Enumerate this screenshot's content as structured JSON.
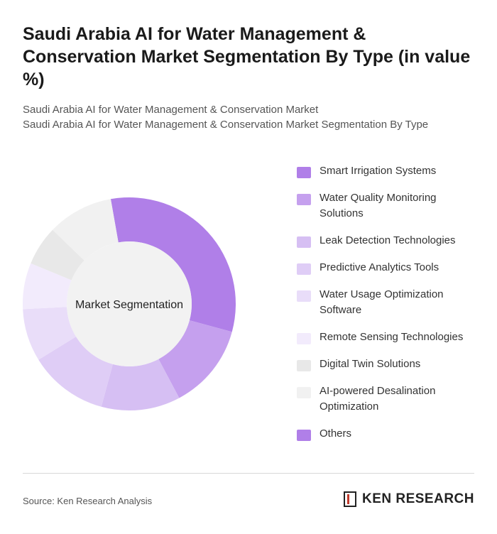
{
  "chart_data": {
    "type": "donut",
    "title": "Saudi Arabia AI for Water Management & Conservation Market Segmentation By Type (in value %)",
    "subtitle": [
      "Saudi Arabia AI for Water Management & Conservation Market",
      "Saudi Arabia AI for Water Management & Conservation Market Segmentation By Type"
    ],
    "center_label": "Market Segmentation",
    "categories": [
      "Smart Irrigation Systems",
      "Water Quality Monitoring Solutions",
      "Leak Detection Technologies",
      "Predictive Analytics Tools",
      "Water Usage Optimization Software",
      "Remote Sensing Technologies",
      "Digital Twin Solutions",
      "AI-powered Desalination Optimization",
      "Others"
    ],
    "values": [
      32,
      13,
      12,
      12,
      8,
      7,
      6,
      10,
      0
    ],
    "colors": [
      "#b07fe8",
      "#c5a0ee",
      "#d6bff3",
      "#dfcdf6",
      "#e9ddf9",
      "#f2ebfc",
      "#e8e8e8",
      "#f1f1f1",
      "#b07fe8"
    ]
  },
  "footer": {
    "source": "Source: Ken Research Analysis",
    "logo": "KEN RESEARCH"
  }
}
